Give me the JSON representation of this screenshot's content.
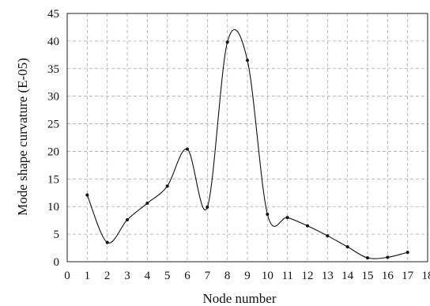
{
  "chart_data": {
    "type": "line",
    "title": "",
    "xlabel": "Node number",
    "ylabel": "Mode shape curvature (E-05)",
    "xlim": [
      0,
      18
    ],
    "ylim": [
      0,
      45
    ],
    "x_ticks": [
      "0",
      "1",
      "2",
      "3",
      "4",
      "5",
      "6",
      "7",
      "8",
      "9",
      "10",
      "11",
      "12",
      "13",
      "14",
      "15",
      "16",
      "17",
      "18"
    ],
    "y_ticks": [
      "0",
      "5",
      "10",
      "15",
      "20",
      "25",
      "30",
      "35",
      "40",
      "45"
    ],
    "grid": true,
    "smoothed": true,
    "series": [
      {
        "x": [
          1,
          2,
          3,
          4,
          5,
          6,
          7,
          8,
          9,
          10,
          11,
          12,
          13,
          14,
          15,
          16,
          17
        ],
        "values": [
          12.1,
          3.5,
          7.6,
          10.6,
          13.7,
          20.4,
          9.9,
          39.8,
          36.5,
          8.6,
          8.0,
          6.5,
          4.7,
          2.7,
          0.7,
          0.8,
          1.7
        ]
      }
    ],
    "colors": {
      "line": "#111111",
      "grid": "#a8a8a8",
      "frame": "#222222"
    }
  }
}
